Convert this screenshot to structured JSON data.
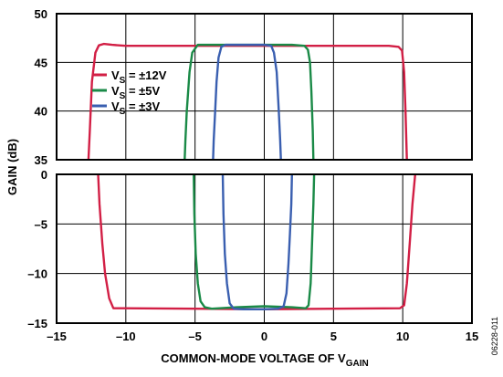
{
  "chart_data": {
    "type": "line",
    "xlabel": "COMMON-MODE VOLTAGE OF V",
    "xlabel_sub": "GAIN",
    "ylabel": "GAIN (dB)",
    "figure_id": "06228-011",
    "grid": true,
    "legend_placement": "upper-left of top panel",
    "x_ticks": [
      "–15",
      "–10",
      "–5",
      "0",
      "5",
      "10",
      "15"
    ],
    "xlim": [
      -15,
      15
    ],
    "panels": [
      {
        "name": "top",
        "ylim": [
          35,
          50
        ],
        "y_ticks": [
          "35",
          "40",
          "45",
          "50"
        ],
        "series": [
          {
            "ref": "12v",
            "color": "#d21f45",
            "x": [
              -12.7,
              -12.6,
              -12.45,
              -12.2,
              -11.95,
              -11.6,
              -11.0,
              -10.0,
              -5.0,
              0.0,
              5.0,
              9.0,
              9.7,
              9.95,
              10.1,
              10.2,
              10.3
            ],
            "y": [
              35.0,
              38.0,
              43.0,
              46.0,
              46.75,
              46.9,
              46.8,
              46.7,
              46.7,
              46.7,
              46.7,
              46.7,
              46.6,
              46.2,
              44.0,
              40.0,
              35.0
            ]
          },
          {
            "ref": "5v",
            "color": "#1a8a47",
            "x": [
              -5.75,
              -5.7,
              -5.6,
              -5.4,
              -5.2,
              -4.8,
              -3.0,
              0.0,
              2.0,
              2.9,
              3.15,
              3.3,
              3.4,
              3.5,
              3.55
            ],
            "y": [
              35.0,
              37.0,
              40.0,
              44.0,
              46.0,
              46.8,
              46.8,
              46.8,
              46.8,
              46.7,
              46.3,
              45.0,
              42.0,
              38.0,
              35.0
            ]
          },
          {
            "ref": "3v",
            "color": "#3a5fb0",
            "x": [
              -3.7,
              -3.65,
              -3.55,
              -3.45,
              -3.3,
              -3.1,
              -2.8,
              -1.0,
              0.0,
              0.5,
              0.7,
              0.9,
              1.05,
              1.15,
              1.2
            ],
            "y": [
              35.0,
              37.0,
              40.0,
              43.0,
              45.5,
              46.6,
              46.8,
              46.8,
              46.8,
              46.7,
              46.0,
              44.0,
              40.0,
              37.0,
              35.0
            ]
          }
        ]
      },
      {
        "name": "bottom",
        "ylim": [
          -15,
          0
        ],
        "y_ticks": [
          "0",
          "–5",
          "–10",
          "–15"
        ],
        "series": [
          {
            "ref": "12v",
            "color": "#d21f45",
            "x": [
              -12.0,
              -11.9,
              -11.7,
              -11.5,
              -11.2,
              -10.9,
              -10.0,
              -5.0,
              0.0,
              5.0,
              9.8,
              10.1,
              10.3,
              10.5,
              10.7,
              10.9
            ],
            "y": [
              0.0,
              -3.0,
              -7.0,
              -10.0,
              -12.5,
              -13.5,
              -13.5,
              -13.55,
              -13.6,
              -13.55,
              -13.5,
              -13.2,
              -11.0,
              -7.0,
              -3.0,
              0.0
            ]
          },
          {
            "ref": "5v",
            "color": "#1a8a47",
            "x": [
              -5.1,
              -5.05,
              -4.95,
              -4.8,
              -4.6,
              -4.3,
              -3.8,
              -2.0,
              0.0,
              2.0,
              3.0,
              3.2,
              3.35,
              3.45,
              3.55,
              3.6
            ],
            "y": [
              0.0,
              -4.0,
              -8.0,
              -11.0,
              -12.8,
              -13.4,
              -13.55,
              -13.4,
              -13.3,
              -13.4,
              -13.5,
              -13.2,
              -11.0,
              -7.0,
              -3.0,
              0.0
            ]
          },
          {
            "ref": "3v",
            "color": "#3a5fb0",
            "x": [
              -3.0,
              -2.95,
              -2.85,
              -2.7,
              -2.5,
              -2.2,
              -1.5,
              0.0,
              1.0,
              1.4,
              1.6,
              1.75,
              1.85,
              1.95,
              2.0
            ],
            "y": [
              0.0,
              -4.0,
              -8.0,
              -11.0,
              -13.0,
              -13.55,
              -13.6,
              -13.6,
              -13.55,
              -13.3,
              -12.0,
              -9.0,
              -6.0,
              -3.0,
              0.0
            ]
          }
        ]
      }
    ],
    "legend": [
      {
        "ref": "12v",
        "color": "#d21f45",
        "pre": "V",
        "sub": "S",
        "post": " = ±12V"
      },
      {
        "ref": "5v",
        "color": "#1a8a47",
        "pre": "V",
        "sub": "S",
        "post": " = ±5V"
      },
      {
        "ref": "3v",
        "color": "#3a5fb0",
        "pre": "V",
        "sub": "S",
        "post": " = ±3V"
      }
    ]
  }
}
